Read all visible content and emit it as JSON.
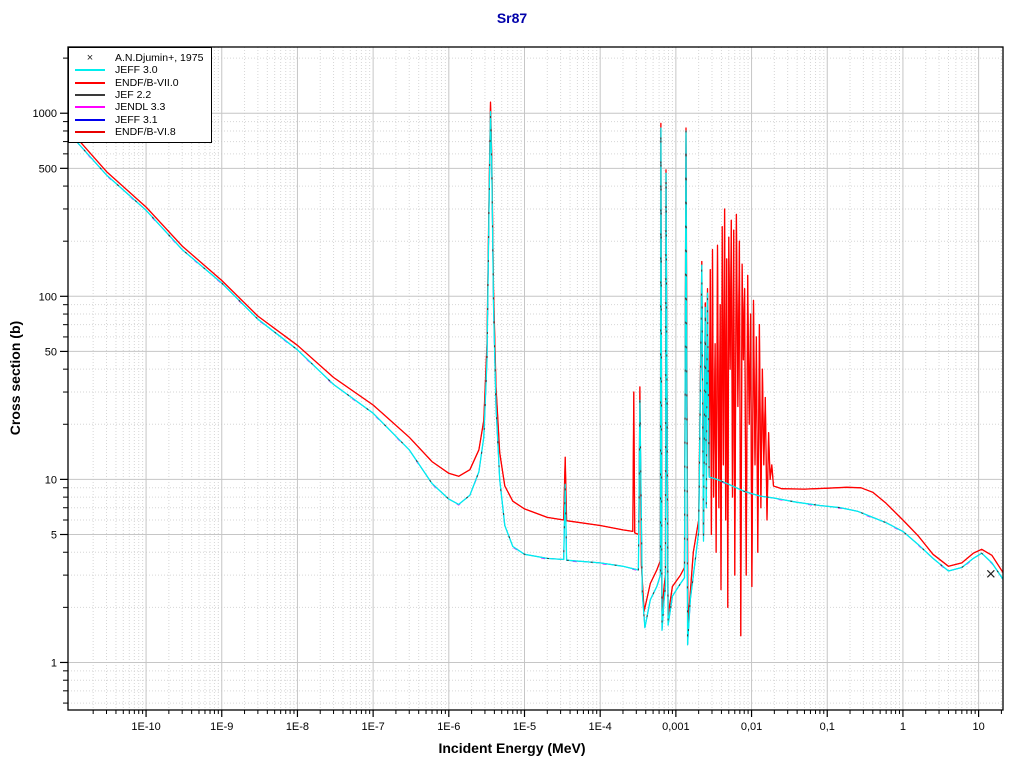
{
  "title": {
    "text": "Sr87",
    "color": "#0000AA"
  },
  "axes": {
    "x": {
      "label": "Incident Energy (MeV)",
      "scale": "log",
      "min": 9.3e-12,
      "max": 21,
      "ticks": [
        {
          "v": 1e-10,
          "label": "1E-10"
        },
        {
          "v": 1e-09,
          "label": "1E-9"
        },
        {
          "v": 1e-08,
          "label": "1E-8"
        },
        {
          "v": 1e-07,
          "label": "1E-7"
        },
        {
          "v": 1e-06,
          "label": "1E-6"
        },
        {
          "v": 1e-05,
          "label": "1E-5"
        },
        {
          "v": 0.0001,
          "label": "1E-4"
        },
        {
          "v": 0.001,
          "label": "0,001"
        },
        {
          "v": 0.01,
          "label": "0,01"
        },
        {
          "v": 0.1,
          "label": "0,1"
        },
        {
          "v": 1,
          "label": "1"
        },
        {
          "v": 10,
          "label": "10"
        }
      ]
    },
    "y": {
      "label": "Cross section (b)",
      "scale": "log",
      "min": 0.55,
      "max": 2300,
      "ticks": [
        {
          "v": 1000,
          "label": "1000"
        },
        {
          "v": 500,
          "label": "500"
        },
        {
          "v": 100,
          "label": "100"
        },
        {
          "v": 50,
          "label": "50"
        },
        {
          "v": 10,
          "label": "10"
        },
        {
          "v": 5,
          "label": "5"
        },
        {
          "v": 1,
          "label": "1"
        }
      ]
    }
  },
  "grid": {
    "major_color": "#c6c6c6",
    "minor_color": "#d6d6d6",
    "frame_color": "#000000"
  },
  "legend": {
    "entries": [
      {
        "name": "A.N.Djumin+, 1975",
        "color": "#222222",
        "swatch": "x-marker"
      },
      {
        "name": "JEFF 3.0",
        "color": "#00EEEE",
        "swatch": "line"
      },
      {
        "name": "ENDF/B-VII.0",
        "color": "#FF0000",
        "swatch": "line"
      },
      {
        "name": "JEF 2.2",
        "color": "#3A3A3A",
        "swatch": "line"
      },
      {
        "name": "JENDL 3.3",
        "color": "#FF00FF",
        "swatch": "line"
      },
      {
        "name": "JEFF 3.1",
        "color": "#0000EE",
        "swatch": "line"
      },
      {
        "name": "ENDF/B-VI.8",
        "color": "#E80000",
        "swatch": "line"
      }
    ]
  },
  "chart_data": {
    "type": "line",
    "title": "Sr87",
    "xlabel": "Incident Energy (MeV)",
    "ylabel": "Cross section (b)",
    "xscale": "log",
    "yscale": "log",
    "xlim": [
      9.3e-12,
      21
    ],
    "ylim": [
      0.55,
      2300
    ],
    "legend_position": "top-left",
    "grid": true,
    "series": [
      {
        "name": "ENDF/B-VI.8",
        "type": "line",
        "color": "#E80000",
        "same_as": "ENDF/B-VII.0",
        "z": 1,
        "width": 1
      },
      {
        "name": "JEFF 3.1",
        "type": "line",
        "color": "#0000EE",
        "same_as": "JEFF 3.0",
        "z": 2,
        "width": 1
      },
      {
        "name": "JENDL 3.3",
        "type": "line",
        "color": "#FF00FF",
        "same_as": "JEFF 3.0",
        "z": 3,
        "width": 1,
        "dy": 0.7,
        "dash": "4 26"
      },
      {
        "name": "ENDF/B-VII.0",
        "type": "line",
        "color": "#FF0000",
        "z": 4,
        "width": 1.3,
        "points": [
          [
            9.3e-12,
            830
          ],
          [
            3e-11,
            480
          ],
          [
            1e-10,
            307
          ],
          [
            3e-10,
            188
          ],
          [
            1e-09,
            122
          ],
          [
            3e-09,
            78
          ],
          [
            1e-08,
            54
          ],
          [
            3e-08,
            36
          ],
          [
            1e-07,
            25.5
          ],
          [
            3e-07,
            17
          ],
          [
            6e-07,
            12.5
          ],
          [
            1e-06,
            10.8
          ],
          [
            1.35e-06,
            10.4
          ],
          [
            1.9e-06,
            11.3
          ],
          [
            2.5e-06,
            14.5
          ],
          [
            2.9e-06,
            21
          ],
          [
            3.2e-06,
            55
          ],
          [
            3.4e-06,
            340
          ],
          [
            3.55e-06,
            1150
          ],
          [
            3.7e-06,
            560
          ],
          [
            3.9e-06,
            110
          ],
          [
            4.2e-06,
            32
          ],
          [
            4.7e-06,
            14
          ],
          [
            5.5e-06,
            9.2
          ],
          [
            7e-06,
            7.6
          ],
          [
            1e-05,
            6.9
          ],
          [
            2e-05,
            6.2
          ],
          [
            3.3e-05,
            6.0
          ],
          [
            3.45e-05,
            13.2
          ],
          [
            3.6e-05,
            5.95
          ],
          [
            0.0001,
            5.6
          ],
          [
            0.0002,
            5.3
          ],
          [
            0.00027,
            5.2
          ],
          [
            0.000278,
            30
          ],
          [
            0.000286,
            5.1
          ],
          [
            0.000325,
            5.0
          ],
          [
            0.000335,
            32
          ],
          [
            0.00035,
            3.4
          ],
          [
            0.00038,
            1.9
          ],
          [
            0.00046,
            2.7
          ],
          [
            0.00056,
            3.2
          ],
          [
            0.000625,
            3.6
          ],
          [
            0.000635,
            880
          ],
          [
            0.000655,
            1.9
          ],
          [
            0.0007,
            2.6
          ],
          [
            0.00073,
            3.0
          ],
          [
            0.00074,
            490
          ],
          [
            0.00079,
            1.8
          ],
          [
            0.0009,
            2.6
          ],
          [
            0.00115,
            3.0
          ],
          [
            0.0013,
            3.3
          ],
          [
            0.00136,
            830
          ],
          [
            0.00144,
            1.6
          ],
          [
            0.0017,
            4.0
          ],
          [
            0.002,
            6.0
          ],
          [
            0.0022,
            155
          ],
          [
            0.00232,
            5.0
          ],
          [
            0.00245,
            92
          ],
          [
            0.00252,
            8
          ],
          [
            0.00262,
            110
          ],
          [
            0.00275,
            10.5
          ],
          [
            0.00285,
            140
          ],
          [
            0.00295,
            5
          ],
          [
            0.00305,
            180
          ],
          [
            0.00315,
            8
          ],
          [
            0.0033,
            55
          ],
          [
            0.0034,
            4
          ],
          [
            0.00355,
            190
          ],
          [
            0.0037,
            7
          ],
          [
            0.00385,
            90
          ],
          [
            0.00395,
            2.5
          ],
          [
            0.0041,
            240
          ],
          [
            0.00425,
            12
          ],
          [
            0.0044,
            300
          ],
          [
            0.00455,
            6
          ],
          [
            0.0047,
            160
          ],
          [
            0.00485,
            2.0
          ],
          [
            0.005,
            210
          ],
          [
            0.0052,
            40
          ],
          [
            0.0054,
            260
          ],
          [
            0.0056,
            8
          ],
          [
            0.0058,
            230
          ],
          [
            0.006,
            3
          ],
          [
            0.0063,
            280
          ],
          [
            0.0066,
            25
          ],
          [
            0.0069,
            200
          ],
          [
            0.0072,
            1.4
          ],
          [
            0.0075,
            150
          ],
          [
            0.0078,
            45
          ],
          [
            0.0081,
            110
          ],
          [
            0.0085,
            3
          ],
          [
            0.0089,
            130
          ],
          [
            0.0093,
            20
          ],
          [
            0.0097,
            80
          ],
          [
            0.0101,
            2.6
          ],
          [
            0.0106,
            95
          ],
          [
            0.0111,
            12
          ],
          [
            0.0116,
            60
          ],
          [
            0.0121,
            4
          ],
          [
            0.0127,
            70
          ],
          [
            0.0133,
            7
          ],
          [
            0.0139,
            40
          ],
          [
            0.0145,
            12
          ],
          [
            0.0152,
            28
          ],
          [
            0.016,
            6
          ],
          [
            0.0168,
            18
          ],
          [
            0.0176,
            10
          ],
          [
            0.0185,
            12
          ],
          [
            0.0195,
            9.2
          ],
          [
            0.025,
            8.9
          ],
          [
            0.05,
            8.85
          ],
          [
            0.1,
            8.95
          ],
          [
            0.18,
            9.05
          ],
          [
            0.28,
            9.0
          ],
          [
            0.4,
            8.5
          ],
          [
            0.6,
            7.4
          ],
          [
            1,
            6.0
          ],
          [
            1.6,
            4.9
          ],
          [
            2.5,
            3.9
          ],
          [
            4,
            3.35
          ],
          [
            6,
            3.5
          ],
          [
            8.5,
            3.95
          ],
          [
            11,
            4.15
          ],
          [
            15,
            3.85
          ],
          [
            21,
            3.1
          ]
        ]
      },
      {
        "name": "JEFF 3.0",
        "type": "line",
        "color": "#00EEEE",
        "z": 5,
        "width": 1.3,
        "points": [
          [
            9.3e-12,
            790
          ],
          [
            3e-11,
            460
          ],
          [
            1e-10,
            295
          ],
          [
            3e-10,
            180
          ],
          [
            1e-09,
            118
          ],
          [
            3e-09,
            75
          ],
          [
            1e-08,
            51
          ],
          [
            3e-08,
            33
          ],
          [
            1e-07,
            23
          ],
          [
            3e-07,
            14.5
          ],
          [
            6e-07,
            9.5
          ],
          [
            1e-06,
            7.8
          ],
          [
            1.35e-06,
            7.3
          ],
          [
            1.9e-06,
            8.2
          ],
          [
            2.5e-06,
            11
          ],
          [
            2.9e-06,
            17
          ],
          [
            3.2e-06,
            45
          ],
          [
            3.4e-06,
            300
          ],
          [
            3.55e-06,
            1020
          ],
          [
            3.7e-06,
            500
          ],
          [
            3.9e-06,
            90
          ],
          [
            4.2e-06,
            25
          ],
          [
            4.7e-06,
            10
          ],
          [
            5.5e-06,
            5.6
          ],
          [
            7e-06,
            4.3
          ],
          [
            1e-05,
            3.9
          ],
          [
            2e-05,
            3.7
          ],
          [
            3.3e-05,
            3.65
          ],
          [
            3.45e-05,
            9.4
          ],
          [
            3.6e-05,
            3.62
          ],
          [
            0.0001,
            3.5
          ],
          [
            0.0002,
            3.35
          ],
          [
            0.00032,
            3.2
          ],
          [
            0.000335,
            27
          ],
          [
            0.00036,
            2.4
          ],
          [
            0.00039,
            1.55
          ],
          [
            0.00046,
            2.2
          ],
          [
            0.00056,
            2.6
          ],
          [
            0.000625,
            3.0
          ],
          [
            0.000635,
            830
          ],
          [
            0.000655,
            1.5
          ],
          [
            0.0007,
            2.2
          ],
          [
            0.00073,
            2.6
          ],
          [
            0.00074,
            470
          ],
          [
            0.00079,
            1.6
          ],
          [
            0.0009,
            2.3
          ],
          [
            0.00115,
            2.7
          ],
          [
            0.0013,
            2.9
          ],
          [
            0.00136,
            800
          ],
          [
            0.00143,
            1.25
          ],
          [
            0.00155,
            2.2
          ],
          [
            0.0018,
            3.6
          ],
          [
            0.002,
            5.2
          ],
          [
            0.0022,
            148
          ],
          [
            0.00232,
            4.6
          ],
          [
            0.00245,
            87
          ],
          [
            0.00252,
            7
          ],
          [
            0.00262,
            104
          ],
          [
            0.00275,
            10.3
          ],
          [
            0.0035,
            10.0
          ],
          [
            0.005,
            9.4
          ],
          [
            0.008,
            8.6
          ],
          [
            0.013,
            8.1
          ],
          [
            0.02,
            7.9
          ],
          [
            0.04,
            7.5
          ],
          [
            0.08,
            7.2
          ],
          [
            0.15,
            7.0
          ],
          [
            0.25,
            6.7
          ],
          [
            0.4,
            6.2
          ],
          [
            0.6,
            5.8
          ],
          [
            1,
            5.2
          ],
          [
            1.6,
            4.4
          ],
          [
            2.5,
            3.7
          ],
          [
            4,
            3.16
          ],
          [
            6,
            3.3
          ],
          [
            8.5,
            3.7
          ],
          [
            11,
            3.95
          ],
          [
            15,
            3.5
          ],
          [
            21,
            2.85
          ]
        ]
      },
      {
        "name": "JEF 2.2",
        "type": "line",
        "color": "#3A3A3A",
        "same_as": "JEFF 3.0",
        "z": 6,
        "width": 1,
        "dash": "2 22"
      },
      {
        "name": "A.N.Djumin+, 1975",
        "type": "scatter",
        "marker": "x",
        "color": "#222222",
        "z": 7,
        "points": [
          [
            14.5,
            3.05
          ]
        ]
      }
    ]
  }
}
